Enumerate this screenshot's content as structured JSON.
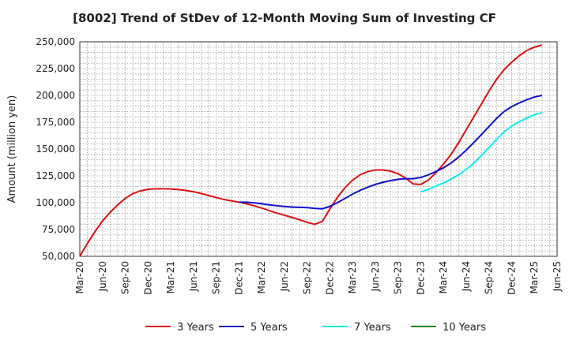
{
  "chart_data": {
    "type": "line",
    "title": "[8002]  Trend of StDev of 12-Month Moving Sum of Investing CF",
    "ylabel": "Amount (million yen)",
    "xlabel": "",
    "ylim": [
      50000,
      250000
    ],
    "yticks": [
      50000,
      75000,
      100000,
      125000,
      150000,
      175000,
      200000,
      225000,
      250000
    ],
    "ytick_labels": [
      "50,000",
      "75,000",
      "100,000",
      "125,000",
      "150,000",
      "175,000",
      "200,000",
      "225,000",
      "250,000"
    ],
    "x_range": [
      "2020-03",
      "2025-06"
    ],
    "xtick_labels": [
      "Mar-20",
      "Jun-20",
      "Sep-20",
      "Dec-20",
      "Mar-21",
      "Jun-21",
      "Sep-21",
      "Dec-21",
      "Mar-22",
      "Jun-22",
      "Sep-22",
      "Dec-22",
      "Mar-23",
      "Jun-23",
      "Sep-23",
      "Dec-23",
      "Mar-24",
      "Jun-24",
      "Sep-24",
      "Dec-24",
      "Mar-25",
      "Jun-25"
    ],
    "grid": true,
    "legend_position": "bottom",
    "series": [
      {
        "name": "3 Years",
        "color": "#dd1111",
        "points": [
          [
            "2020-03",
            50000
          ],
          [
            "2020-04",
            62000
          ],
          [
            "2020-05",
            73000
          ],
          [
            "2020-06",
            83000
          ],
          [
            "2020-07",
            91000
          ],
          [
            "2020-08",
            98000
          ],
          [
            "2020-09",
            104000
          ],
          [
            "2020-10",
            108500
          ],
          [
            "2020-11",
            111000
          ],
          [
            "2020-12",
            112500
          ],
          [
            "2021-01",
            113000
          ],
          [
            "2021-02",
            113000
          ],
          [
            "2021-03",
            112800
          ],
          [
            "2021-04",
            112200
          ],
          [
            "2021-05",
            111400
          ],
          [
            "2021-06",
            110200
          ],
          [
            "2021-07",
            108600
          ],
          [
            "2021-08",
            106700
          ],
          [
            "2021-09",
            104800
          ],
          [
            "2021-10",
            103000
          ],
          [
            "2021-11",
            101700
          ],
          [
            "2021-12",
            100500
          ],
          [
            "2022-01",
            99000
          ],
          [
            "2022-02",
            97200
          ],
          [
            "2022-03",
            95000
          ],
          [
            "2022-04",
            92600
          ],
          [
            "2022-05",
            90300
          ],
          [
            "2022-06",
            88300
          ],
          [
            "2022-07",
            86300
          ],
          [
            "2022-08",
            84100
          ],
          [
            "2022-09",
            81700
          ],
          [
            "2022-10",
            79800
          ],
          [
            "2022-11",
            82500
          ],
          [
            "2022-12",
            94000
          ],
          [
            "2023-01",
            105000
          ],
          [
            "2023-02",
            114000
          ],
          [
            "2023-03",
            121000
          ],
          [
            "2023-04",
            126000
          ],
          [
            "2023-05",
            129000
          ],
          [
            "2023-06",
            130500
          ],
          [
            "2023-07",
            130500
          ],
          [
            "2023-08",
            129500
          ],
          [
            "2023-09",
            127000
          ],
          [
            "2023-10",
            123000
          ],
          [
            "2023-11",
            117500
          ],
          [
            "2023-12",
            117000
          ],
          [
            "2024-01",
            121000
          ],
          [
            "2024-02",
            128000
          ],
          [
            "2024-03",
            136000
          ],
          [
            "2024-04",
            145000
          ],
          [
            "2024-05",
            156000
          ],
          [
            "2024-06",
            168000
          ],
          [
            "2024-07",
            180000
          ],
          [
            "2024-08",
            192000
          ],
          [
            "2024-09",
            204000
          ],
          [
            "2024-10",
            215000
          ],
          [
            "2024-11",
            224000
          ],
          [
            "2024-12",
            231000
          ],
          [
            "2025-01",
            237000
          ],
          [
            "2025-02",
            242000
          ],
          [
            "2025-03",
            245000
          ],
          [
            "2025-04",
            247000
          ]
        ]
      },
      {
        "name": "5 Years",
        "color": "#1111cc",
        "points": [
          [
            "2021-12",
            100500
          ],
          [
            "2022-01",
            100500
          ],
          [
            "2022-02",
            99800
          ],
          [
            "2022-03",
            99000
          ],
          [
            "2022-04",
            98000
          ],
          [
            "2022-05",
            97200
          ],
          [
            "2022-06",
            96500
          ],
          [
            "2022-07",
            96000
          ],
          [
            "2022-08",
            95700
          ],
          [
            "2022-09",
            95400
          ],
          [
            "2022-10",
            94700
          ],
          [
            "2022-11",
            94300
          ],
          [
            "2022-12",
            96500
          ],
          [
            "2023-01",
            100000
          ],
          [
            "2023-02",
            104000
          ],
          [
            "2023-03",
            108000
          ],
          [
            "2023-04",
            111500
          ],
          [
            "2023-05",
            114500
          ],
          [
            "2023-06",
            117000
          ],
          [
            "2023-07",
            119000
          ],
          [
            "2023-08",
            120600
          ],
          [
            "2023-09",
            121800
          ],
          [
            "2023-10",
            122300
          ],
          [
            "2023-11",
            122300
          ],
          [
            "2023-12",
            123500
          ],
          [
            "2024-01",
            126000
          ],
          [
            "2024-02",
            129000
          ],
          [
            "2024-03",
            132500
          ],
          [
            "2024-04",
            137000
          ],
          [
            "2024-05",
            142500
          ],
          [
            "2024-06",
            149000
          ],
          [
            "2024-07",
            156000
          ],
          [
            "2024-08",
            163500
          ],
          [
            "2024-09",
            171000
          ],
          [
            "2024-10",
            178500
          ],
          [
            "2024-11",
            185000
          ],
          [
            "2024-12",
            189500
          ],
          [
            "2025-01",
            193000
          ],
          [
            "2025-02",
            196000
          ],
          [
            "2025-03",
            198500
          ],
          [
            "2025-04",
            200000
          ]
        ]
      },
      {
        "name": "7 Years",
        "color": "#11eeee",
        "points": [
          [
            "2023-12",
            110000
          ],
          [
            "2024-01",
            112500
          ],
          [
            "2024-02",
            115500
          ],
          [
            "2024-03",
            118500
          ],
          [
            "2024-04",
            122000
          ],
          [
            "2024-05",
            126000
          ],
          [
            "2024-06",
            131000
          ],
          [
            "2024-07",
            137000
          ],
          [
            "2024-08",
            144000
          ],
          [
            "2024-09",
            151500
          ],
          [
            "2024-10",
            159000
          ],
          [
            "2024-11",
            166000
          ],
          [
            "2024-12",
            171500
          ],
          [
            "2025-01",
            175500
          ],
          [
            "2025-02",
            179000
          ],
          [
            "2025-03",
            182000
          ],
          [
            "2025-04",
            184000
          ]
        ]
      },
      {
        "name": "10 Years",
        "color": "#118811",
        "points": []
      }
    ]
  }
}
